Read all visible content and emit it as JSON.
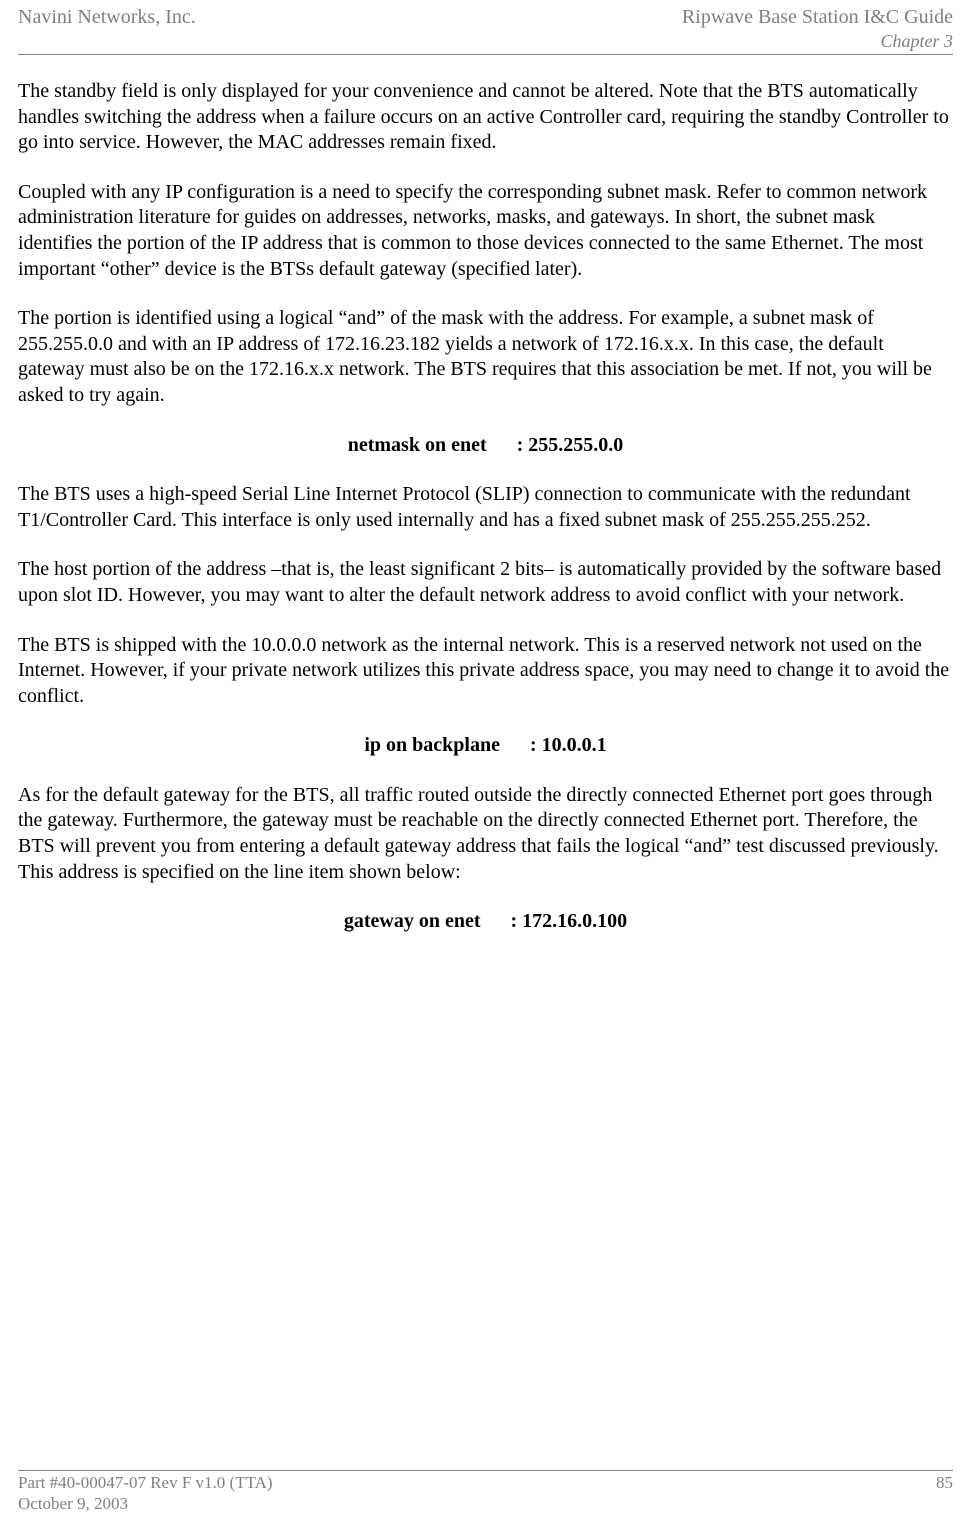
{
  "header": {
    "company": "Navini Networks, Inc.",
    "guide": "Ripwave Base Station I&C Guide",
    "chapter": "Chapter 3"
  },
  "paragraphs": {
    "p1": "The standby field is only displayed for your convenience and cannot be altered. Note that the BTS automatically handles switching the address when a failure occurs on an active Controller card, requiring the standby Controller to go into service. However, the MAC addresses remain fixed.",
    "p2": "Coupled with any IP configuration is a need to specify the corresponding subnet mask. Refer to common network administration literature for guides on addresses, networks, masks, and gateways. In short, the subnet mask identifies the portion of the IP address that is common to those devices connected to the same Ethernet. The most important “other” device is the BTSs default gateway (specified later).",
    "p3": "The portion is identified using a logical “and” of the mask with the address. For example, a subnet mask of 255.255.0.0 and with an IP address of 172.16.23.182 yields a network of 172.16.x.x. In this case, the default gateway must also be on the 172.16.x.x network. The BTS requires that this association be met. If not, you will be asked to try again.",
    "p4": "The BTS uses a high-speed Serial Line Internet Protocol (SLIP) connection to communicate with the redundant T1/Controller Card. This interface is only used internally and has a fixed subnet mask of 255.255.255.252.",
    "p5": "The host portion of the address –that is, the least significant 2 bits– is automatically provided by the software based upon slot ID. However, you may want to alter the default network address to avoid conflict with your network.",
    "p6": "The BTS is shipped with the 10.0.0.0 network as the internal network. This is a reserved network not used on the Internet. However, if your private network utilizes this private address space, you may need to change it to avoid the conflict.",
    "p7": "As for the default gateway for the BTS, all traffic routed outside the directly connected Ethernet port goes through the gateway. Furthermore, the gateway must be reachable on the directly connected Ethernet port. Therefore, the BTS will prevent you from entering a default gateway address that fails the logical “and” test discussed previously. This address is specified on the line item shown below:"
  },
  "settings": {
    "netmask": "netmask on enet      : 255.255.0.0",
    "ip_backplane": "ip on backplane      : 10.0.0.1",
    "gateway": "gateway on enet      : 172.16.0.100"
  },
  "footer": {
    "part": "Part #40-00047-07 Rev F v1.0 (TTA)",
    "page": "85",
    "date": "October 9, 2003"
  }
}
